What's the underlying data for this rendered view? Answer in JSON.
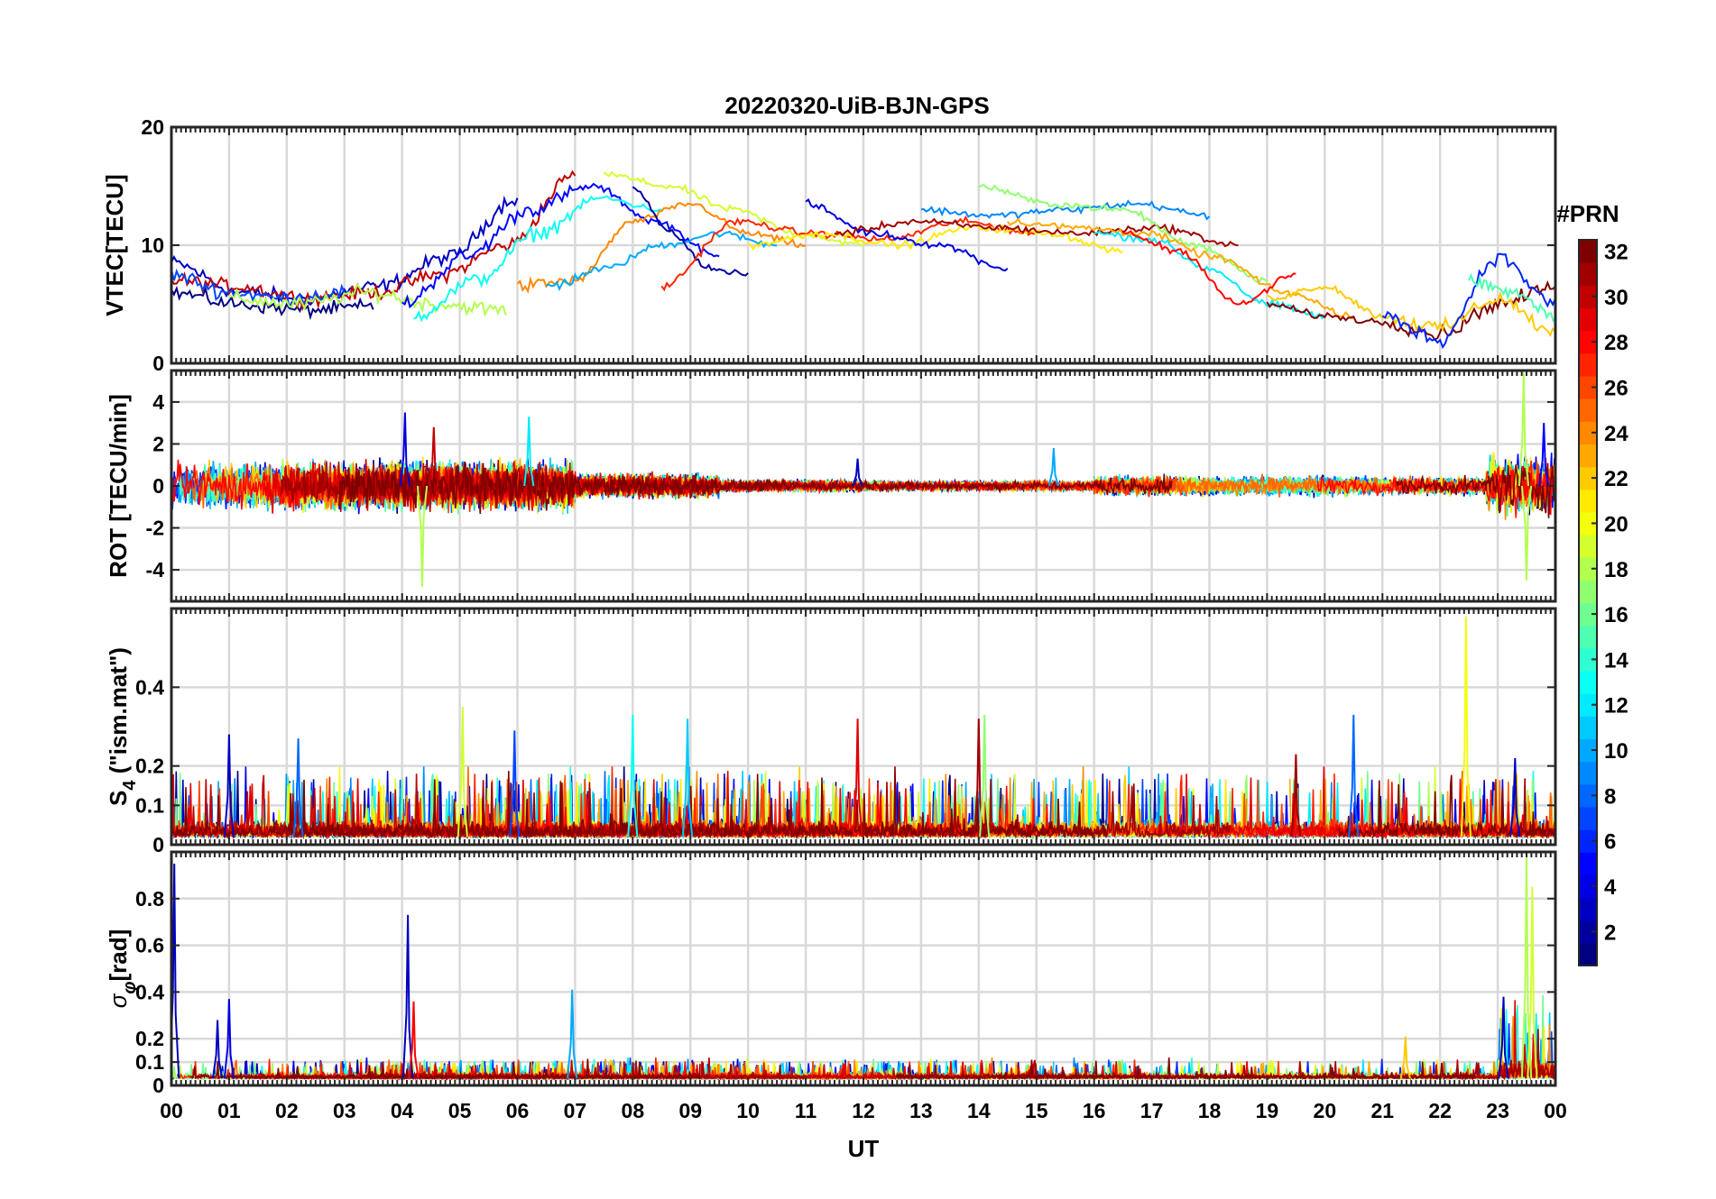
{
  "chart_data": {
    "type": "line",
    "title": "20220320-UiB-BJN-GPS",
    "xlabel": "UT",
    "x_ticks": [
      "00",
      "01",
      "02",
      "03",
      "04",
      "05",
      "06",
      "07",
      "08",
      "09",
      "10",
      "11",
      "12",
      "13",
      "14",
      "15",
      "16",
      "17",
      "18",
      "19",
      "20",
      "21",
      "22",
      "23",
      "00"
    ],
    "xlim_hours": [
      0,
      24
    ],
    "grid": true,
    "colorbar": {
      "title": "#PRN",
      "range": [
        1,
        32
      ],
      "ticks": [
        2,
        4,
        6,
        8,
        10,
        12,
        14,
        16,
        18,
        20,
        22,
        24,
        26,
        28,
        30,
        32
      ],
      "colormap": "jet"
    },
    "panels": [
      {
        "name": "vtec",
        "ylabel": "VTEC[TECU]",
        "ylim": [
          0,
          20
        ],
        "yticks": [
          0,
          10,
          20
        ],
        "kind": "arc",
        "series": [
          {
            "prn": 3,
            "start": 0.0,
            "end": 6.0,
            "path": [
              8.5,
              6.0,
              5.5,
              6.5,
              9.0,
              14.0
            ]
          },
          {
            "prn": 1,
            "start": 0.0,
            "end": 3.5,
            "path": [
              6.0,
              5.0,
              4.5,
              4.8
            ]
          },
          {
            "prn": 30,
            "start": 0.0,
            "end": 7.0,
            "path": [
              7.0,
              6.5,
              5.5,
              6.0,
              7.5,
              10.0,
              16.0
            ]
          },
          {
            "prn": 7,
            "start": 0.0,
            "end": 3.0,
            "path": [
              7.5,
              6.0,
              5.5,
              6.0
            ]
          },
          {
            "prn": 18,
            "start": 1.0,
            "end": 5.8,
            "path": [
              5.5,
              5.0,
              6.0,
              5.0,
              4.5
            ]
          },
          {
            "prn": 5,
            "start": 4.0,
            "end": 9.5,
            "path": [
              5.0,
              9.0,
              13.0,
              15.0,
              12.0,
              9.0
            ]
          },
          {
            "prn": 13,
            "start": 4.2,
            "end": 8.5,
            "path": [
              4.0,
              7.0,
              11.0,
              14.0,
              13.0
            ]
          },
          {
            "prn": 24,
            "start": 6.0,
            "end": 11.0,
            "path": [
              6.5,
              7.0,
              12.0,
              13.5,
              11.0,
              10.0
            ]
          },
          {
            "prn": 19,
            "start": 7.5,
            "end": 12.0,
            "path": [
              16.0,
              15.0,
              13.0,
              11.0,
              10.0
            ]
          },
          {
            "prn": 10,
            "start": 6.5,
            "end": 10.5,
            "path": [
              6.5,
              8.0,
              10.0,
              11.0,
              10.0
            ]
          },
          {
            "prn": 2,
            "start": 8.0,
            "end": 10.0,
            "path": [
              15.0,
              11.0,
              8.0,
              7.5
            ]
          },
          {
            "prn": 27,
            "start": 8.5,
            "end": 15.0,
            "path": [
              6.5,
              12.0,
              11.0,
              10.5,
              12.0,
              11.0
            ]
          },
          {
            "prn": 21,
            "start": 10.0,
            "end": 16.5,
            "path": [
              10.0,
              11.0,
              10.0,
              11.5,
              11.0,
              9.5
            ]
          },
          {
            "prn": 4,
            "start": 11.0,
            "end": 14.5,
            "path": [
              13.5,
              11.0,
              10.0,
              8.0
            ]
          },
          {
            "prn": 9,
            "start": 13.0,
            "end": 18.0,
            "path": [
              13.0,
              12.5,
              13.0,
              13.5,
              12.5
            ]
          },
          {
            "prn": 31,
            "start": 11.5,
            "end": 18.5,
            "path": [
              11.0,
              12.0,
              11.5,
              11.0,
              11.5,
              10.0
            ]
          },
          {
            "prn": 17,
            "start": 14.0,
            "end": 19.0,
            "path": [
              15.0,
              13.5,
              13.0,
              10.0,
              7.0
            ]
          },
          {
            "prn": 23,
            "start": 14.5,
            "end": 20.5,
            "path": [
              12.0,
              11.5,
              11.0,
              9.0,
              6.0,
              4.0
            ]
          },
          {
            "prn": 12,
            "start": 16.0,
            "end": 20.0,
            "path": [
              11.0,
              10.5,
              8.0,
              5.0,
              4.0
            ]
          },
          {
            "prn": 28,
            "start": 16.5,
            "end": 19.5,
            "path": [
              11.0,
              9.5,
              5.0,
              7.5
            ]
          },
          {
            "prn": 32,
            "start": 19.0,
            "end": 24.0,
            "path": [
              5.0,
              4.0,
              3.5,
              2.5,
              5.0,
              6.5
            ]
          },
          {
            "prn": 22,
            "start": 19.0,
            "end": 24.0,
            "path": [
              5.5,
              6.5,
              4.0,
              3.0,
              5.5,
              2.5
            ]
          },
          {
            "prn": 6,
            "start": 21.0,
            "end": 24.0,
            "path": [
              4.0,
              2.0,
              9.0,
              5.0
            ]
          },
          {
            "prn": 15,
            "start": 22.5,
            "end": 24.0,
            "path": [
              7.0,
              6.0,
              4.0
            ]
          }
        ]
      },
      {
        "name": "rot",
        "ylabel": "ROT [TECU/min]",
        "ylim": [
          -5.5,
          5.5
        ],
        "yticks": [
          -4,
          -2,
          0,
          2,
          4
        ],
        "kind": "noise",
        "baseline": 0,
        "bipolar": true,
        "activity": [
          {
            "t0": 0.0,
            "t1": 7.0,
            "amp": 1.2
          },
          {
            "t0": 7.0,
            "t1": 9.5,
            "amp": 0.6
          },
          {
            "t0": 9.5,
            "t1": 12.0,
            "amp": 0.3
          },
          {
            "t0": 12.0,
            "t1": 16.0,
            "amp": 0.25
          },
          {
            "t0": 16.0,
            "t1": 20.5,
            "amp": 0.5
          },
          {
            "t0": 20.5,
            "t1": 22.8,
            "amp": 0.45
          },
          {
            "t0": 22.8,
            "t1": 24.0,
            "amp": 1.5
          }
        ],
        "spikes": [
          {
            "t": 4.05,
            "value": 3.5,
            "prn": 4
          },
          {
            "t": 4.35,
            "value": -4.8,
            "prn": 18
          },
          {
            "t": 4.55,
            "value": 2.8,
            "prn": 30
          },
          {
            "t": 6.2,
            "value": 3.3,
            "prn": 12
          },
          {
            "t": 11.9,
            "value": 1.3,
            "prn": 3
          },
          {
            "t": 15.3,
            "value": 1.8,
            "prn": 10
          },
          {
            "t": 23.45,
            "value": 5.4,
            "prn": 18
          },
          {
            "t": 23.5,
            "value": -4.5,
            "prn": 18
          },
          {
            "t": 23.8,
            "value": 3.0,
            "prn": 5
          }
        ]
      },
      {
        "name": "s4",
        "ylabel": "S4 (\"ism.mat\")",
        "ylabel_main": "S",
        "ylabel_sub": "4",
        "ylabel_rest": " (\"ism.mat\")",
        "ylim": [
          0,
          0.6
        ],
        "yticks": [
          0,
          0.1,
          0.2,
          0.4
        ],
        "kind": "noise",
        "baseline": 0.02,
        "bipolar": false,
        "activity": [
          {
            "t0": 0.0,
            "t1": 24.0,
            "amp": 0.05
          }
        ],
        "spikes": [
          {
            "t": 1.0,
            "value": 0.28,
            "prn": 3
          },
          {
            "t": 2.2,
            "value": 0.27,
            "prn": 8
          },
          {
            "t": 5.05,
            "value": 0.35,
            "prn": 19
          },
          {
            "t": 5.95,
            "value": 0.29,
            "prn": 7
          },
          {
            "t": 8.0,
            "value": 0.33,
            "prn": 13
          },
          {
            "t": 8.95,
            "value": 0.32,
            "prn": 11
          },
          {
            "t": 11.9,
            "value": 0.32,
            "prn": 29
          },
          {
            "t": 14.0,
            "value": 0.32,
            "prn": 31
          },
          {
            "t": 14.1,
            "value": 0.33,
            "prn": 17
          },
          {
            "t": 19.5,
            "value": 0.23,
            "prn": 31
          },
          {
            "t": 20.5,
            "value": 0.33,
            "prn": 8
          },
          {
            "t": 22.45,
            "value": 0.58,
            "prn": 20
          },
          {
            "t": 23.3,
            "value": 0.22,
            "prn": 3
          }
        ]
      },
      {
        "name": "sigma_phi",
        "ylabel": "σφ[rad]",
        "ylabel_main": "σ",
        "ylabel_sub": "φ",
        "ylabel_rest": "[rad]",
        "ylim": [
          0,
          1.0
        ],
        "yticks": [
          0,
          0.1,
          0.2,
          0.4,
          0.6,
          0.8
        ],
        "kind": "noise",
        "baseline": 0.03,
        "bipolar": false,
        "activity": [
          {
            "t0": 0.0,
            "t1": 23.0,
            "amp": 0.025
          },
          {
            "t0": 23.0,
            "t1": 24.0,
            "amp": 0.1
          }
        ],
        "spikes": [
          {
            "t": 0.05,
            "value": 0.95,
            "prn": 3
          },
          {
            "t": 0.8,
            "value": 0.28,
            "prn": 3
          },
          {
            "t": 1.0,
            "value": 0.37,
            "prn": 4
          },
          {
            "t": 4.1,
            "value": 0.73,
            "prn": 3
          },
          {
            "t": 4.2,
            "value": 0.36,
            "prn": 28
          },
          {
            "t": 6.95,
            "value": 0.41,
            "prn": 10
          },
          {
            "t": 21.4,
            "value": 0.21,
            "prn": 22
          },
          {
            "t": 23.1,
            "value": 0.38,
            "prn": 3
          },
          {
            "t": 23.5,
            "value": 0.98,
            "prn": 18
          },
          {
            "t": 23.6,
            "value": 0.85,
            "prn": 19
          }
        ]
      }
    ]
  }
}
